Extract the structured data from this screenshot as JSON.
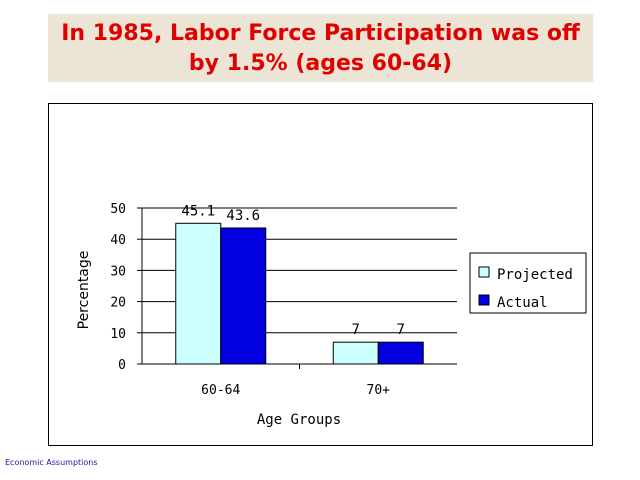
{
  "slide": {
    "title_line1": "In 1985, Labor Force Participation was off",
    "title_line2": "by 1.5% (ages 60-64)",
    "footer": "Economic Assumptions"
  },
  "chart_data": {
    "type": "bar",
    "categories": [
      "60-64",
      "70+"
    ],
    "series": [
      {
        "name": "Projected",
        "values": [
          45.1,
          7
        ],
        "labels": [
          "45.1",
          "7"
        ],
        "color": "#ccffff"
      },
      {
        "name": "Actual",
        "values": [
          43.6,
          7
        ],
        "labels": [
          "43.6",
          "7"
        ],
        "color": "#0000e0"
      }
    ],
    "xlabel": "Age Groups",
    "ylabel": "Percentage",
    "ylim": [
      0,
      50
    ],
    "yticks": [
      0,
      10,
      20,
      30,
      40,
      50
    ],
    "grid": true,
    "legend": "right"
  }
}
